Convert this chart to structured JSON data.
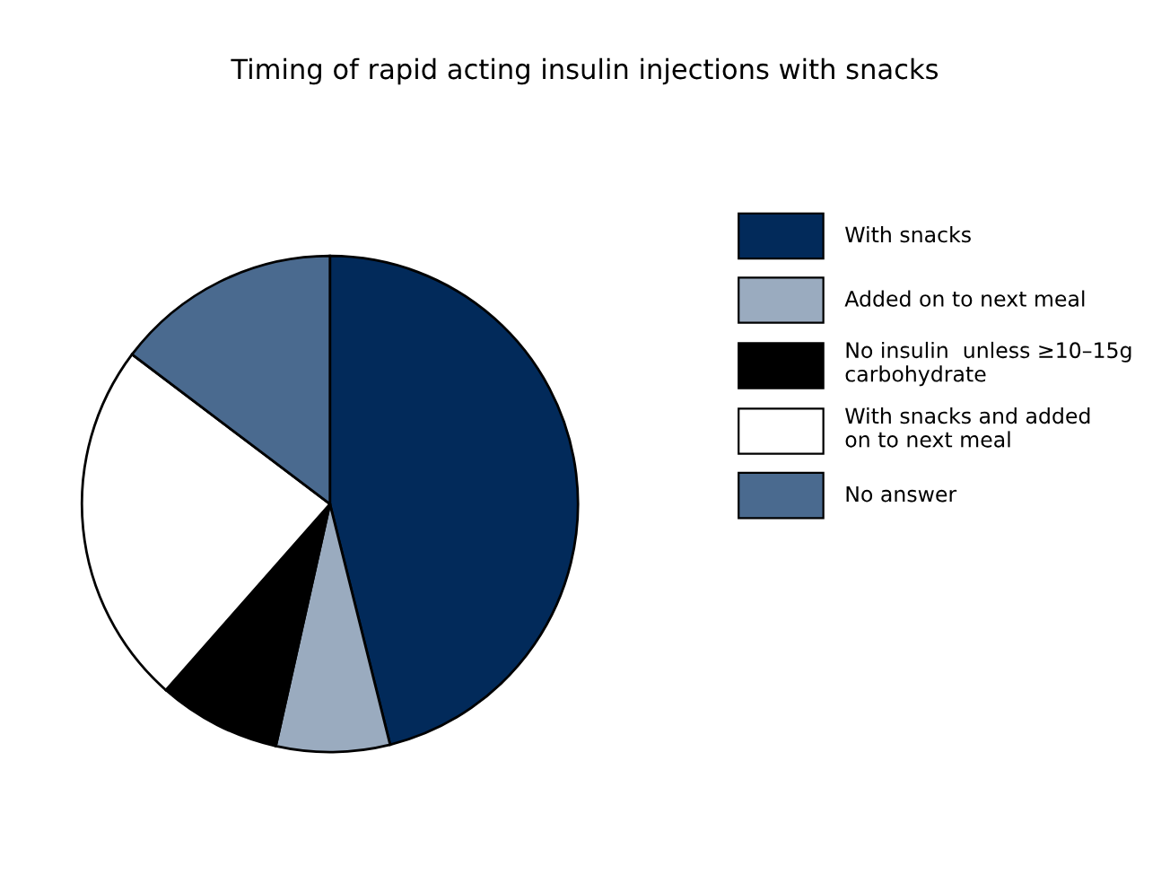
{
  "chart_data": {
    "type": "pie",
    "title": "Timing of rapid acting insulin injections with snacks",
    "categories": [
      "With snacks",
      "Added on to next meal",
      "No insulin  unless ≥10–15g\ncarbohydrate",
      "With snacks and added\non to next meal",
      "No answer"
    ],
    "values": [
      46.1,
      7.4,
      8.0,
      23.8,
      14.7
    ],
    "colors": [
      "#022a5a",
      "#9aabbf",
      "#000000",
      "#ffffff",
      "#4a6a8f"
    ],
    "legend": "right"
  }
}
